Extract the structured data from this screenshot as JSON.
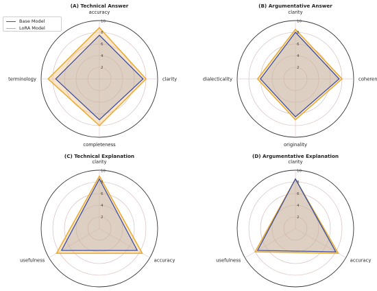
{
  "chart_data": [
    {
      "type": "radar",
      "title": "(A) Technical Answer",
      "categories": [
        "accuracy",
        "clarity",
        "completeness",
        "terminology"
      ],
      "rlim": [
        0,
        10
      ],
      "rticks": [
        "2",
        "4",
        "6",
        "8"
      ],
      "outer_label": "10",
      "series": [
        {
          "name": "Base Model",
          "values": [
            7.5,
            7.5,
            7.0,
            7.5
          ]
        },
        {
          "name": "LoRA Model",
          "values": [
            8.8,
            8.0,
            8.0,
            8.8
          ]
        }
      ]
    },
    {
      "type": "radar",
      "title": "(B) Argumentative Answer",
      "categories": [
        "clarity",
        "coherence",
        "originality",
        "dialecticality"
      ],
      "rlim": [
        0,
        10
      ],
      "rticks": [
        "2",
        "4",
        "6",
        "8"
      ],
      "outer_label": "10",
      "series": [
        {
          "name": "Base Model",
          "values": [
            8.0,
            7.5,
            6.5,
            6.0
          ]
        },
        {
          "name": "LoRA Model",
          "values": [
            8.5,
            8.0,
            7.0,
            6.5
          ]
        }
      ]
    },
    {
      "type": "radar",
      "title": "(C) Technical Explanation",
      "categories": [
        "clarity",
        "accuracy",
        "usefulness"
      ],
      "rlim": [
        0,
        10
      ],
      "rticks": [
        "2",
        "4",
        "6",
        "8"
      ],
      "outer_label": "10",
      "series": [
        {
          "name": "Base Model",
          "values": [
            8.5,
            7.5,
            7.5
          ]
        },
        {
          "name": "LoRA Model",
          "values": [
            9.0,
            8.5,
            8.5
          ]
        }
      ]
    },
    {
      "type": "radar",
      "title": "(D) Argumentative Explanation",
      "categories": [
        "clarity",
        "accuracy",
        "usefulness"
      ],
      "rlim": [
        0,
        10
      ],
      "rticks": [
        "2",
        "4",
        "6",
        "8"
      ],
      "outer_label": "10",
      "series": [
        {
          "name": "Base Model",
          "values": [
            8.5,
            8.0,
            7.5
          ]
        },
        {
          "name": "LoRA Model",
          "values": [
            8.5,
            8.5,
            8.0
          ]
        }
      ]
    }
  ],
  "legend": {
    "placement": "top-left",
    "entries": [
      {
        "name": "Base Model",
        "color": "#3b4fa3"
      },
      {
        "name": "LoRA Model",
        "color": "#e8a92c"
      }
    ]
  },
  "colors": {
    "base_line": "#3b4fa3",
    "lora_line": "#e8a92c",
    "lora_fill": "#f6c58a",
    "base_fill": "#a6a7b5",
    "ring": "#d2b3b3",
    "outer_ring": "#333333",
    "text": "#222222"
  }
}
